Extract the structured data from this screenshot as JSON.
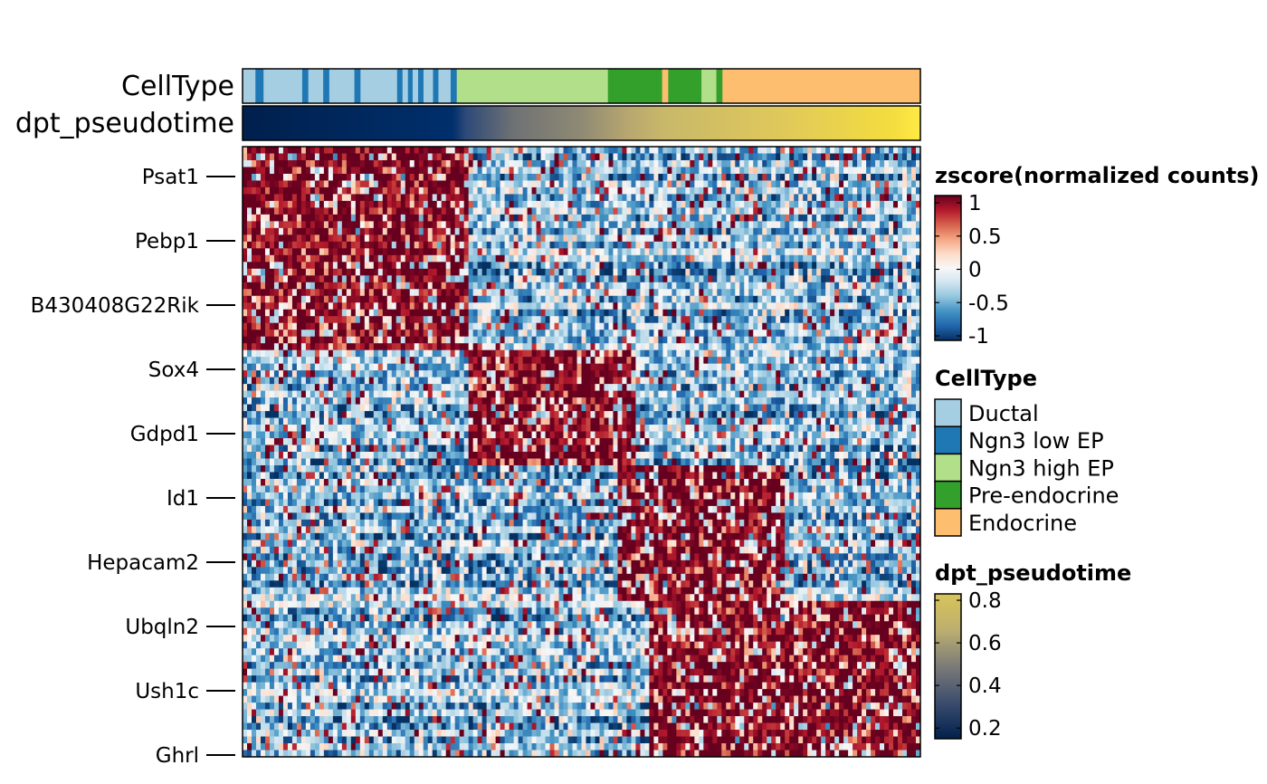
{
  "chart_data": {
    "type": "heatmap",
    "title": "",
    "annotation_tracks": [
      "CellType",
      "dpt_pseudotime"
    ],
    "row_labels": [
      "Psat1",
      "Pebp1",
      "B430408G22Rik",
      "Sox4",
      "Gdpd1",
      "Id1",
      "Hepacam2",
      "Ubqln2",
      "Ush1c",
      "Ghrl"
    ],
    "value_scale": {
      "title": "zscore(normalized counts)",
      "range": [
        -1,
        1
      ],
      "ticks": [
        "1",
        "0.5",
        "0",
        "-0.5",
        "-1"
      ],
      "colors": [
        "#053061",
        "#2166ac",
        "#4393c3",
        "#92c5de",
        "#d1e5f0",
        "#f7f7f7",
        "#fddbc7",
        "#f4a582",
        "#d6604d",
        "#b2182b",
        "#67001f"
      ]
    },
    "celltype_legend": {
      "title": "CellType",
      "entries": [
        {
          "label": "Ductal",
          "color": "#a6cee3"
        },
        {
          "label": "Ngn3 low EP",
          "color": "#1f78b4"
        },
        {
          "label": "Ngn3 high EP",
          "color": "#b2df8a"
        },
        {
          "label": "Pre-endocrine",
          "color": "#33a02c"
        },
        {
          "label": "Endocrine",
          "color": "#fdbf6f"
        }
      ]
    },
    "pseudotime_legend": {
      "title": "dpt_pseudotime",
      "ticks": [
        "0.8",
        "0.6",
        "0.4",
        "0.2"
      ],
      "range": [
        0.15,
        0.83
      ],
      "colors": [
        "#00204d",
        "#3c4d6e",
        "#7c7b78",
        "#bcaf6f",
        "#d9c45a"
      ]
    },
    "celltype_track": [
      {
        "type": "Ductal",
        "from": 0.0,
        "to": 0.019
      },
      {
        "type": "Ngn3 low EP",
        "from": 0.019,
        "to": 0.031
      },
      {
        "type": "Ductal",
        "from": 0.031,
        "to": 0.088
      },
      {
        "type": "Ngn3 low EP",
        "from": 0.088,
        "to": 0.097
      },
      {
        "type": "Ductal",
        "from": 0.097,
        "to": 0.119
      },
      {
        "type": "Ngn3 low EP",
        "from": 0.119,
        "to": 0.128
      },
      {
        "type": "Ductal",
        "from": 0.128,
        "to": 0.165
      },
      {
        "type": "Ngn3 low EP",
        "from": 0.165,
        "to": 0.174
      },
      {
        "type": "Ductal",
        "from": 0.174,
        "to": 0.228
      },
      {
        "type": "Ngn3 low EP",
        "from": 0.228,
        "to": 0.236
      },
      {
        "type": "Ductal",
        "from": 0.236,
        "to": 0.244
      },
      {
        "type": "Ngn3 low EP",
        "from": 0.244,
        "to": 0.251
      },
      {
        "type": "Ductal",
        "from": 0.251,
        "to": 0.259
      },
      {
        "type": "Ngn3 low EP",
        "from": 0.259,
        "to": 0.267
      },
      {
        "type": "Ductal",
        "from": 0.267,
        "to": 0.281
      },
      {
        "type": "Ngn3 low EP",
        "from": 0.281,
        "to": 0.289
      },
      {
        "type": "Ductal",
        "from": 0.289,
        "to": 0.307
      },
      {
        "type": "Ngn3 low EP",
        "from": 0.307,
        "to": 0.316
      },
      {
        "type": "Ngn3 high EP",
        "from": 0.316,
        "to": 0.539
      },
      {
        "type": "Pre-endocrine",
        "from": 0.539,
        "to": 0.619
      },
      {
        "type": "Endocrine",
        "from": 0.619,
        "to": 0.628
      },
      {
        "type": "Pre-endocrine",
        "from": 0.628,
        "to": 0.677
      },
      {
        "type": "Ngn3 high EP",
        "from": 0.677,
        "to": 0.699
      },
      {
        "type": "Pre-endocrine",
        "from": 0.699,
        "to": 0.708
      },
      {
        "type": "Endocrine",
        "from": 0.708,
        "to": 1.0
      }
    ],
    "pseudotime_track": {
      "positions": [
        0,
        0.31,
        0.33,
        0.4,
        0.5,
        0.57,
        0.62,
        0.8,
        0.96,
        1.0
      ],
      "colors": [
        "#00204d",
        "#002f6c",
        "#2e4a78",
        "#6f7274",
        "#8f8a74",
        "#b8a76f",
        "#c8b86a",
        "#e0c95a",
        "#f4dd3e",
        "#ffea46"
      ]
    },
    "clusters": [
      {
        "genes": 30,
        "high_from": 0.0,
        "high_to": 0.33
      },
      {
        "genes": 17,
        "high_from": 0.33,
        "high_to": 0.58
      },
      {
        "genes": 20,
        "high_from": 0.55,
        "high_to": 0.8
      },
      {
        "genes": 23,
        "high_from": 0.6,
        "high_to": 1.0
      }
    ],
    "n_cells": 150
  }
}
